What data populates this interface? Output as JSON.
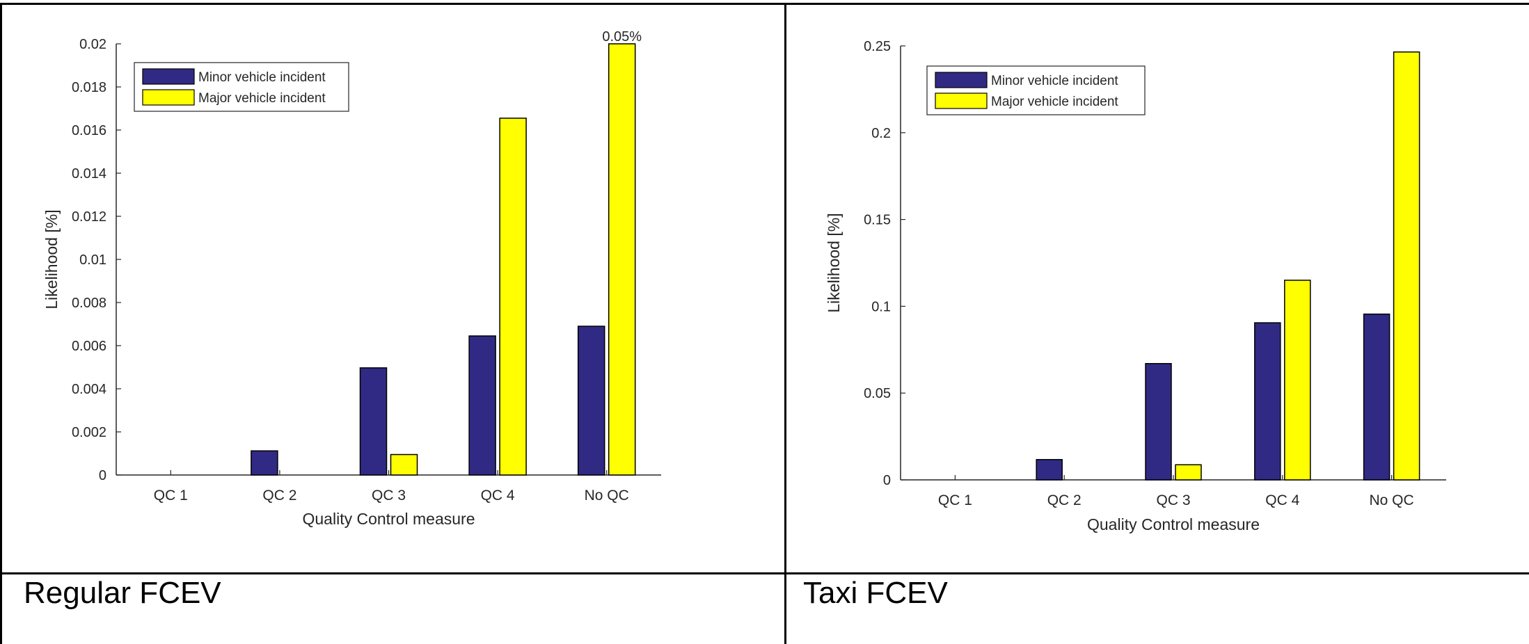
{
  "panels": [
    {
      "caption": "Regular FCEV",
      "chart": {
        "type": "bar",
        "categories": [
          "QC 1",
          "QC 2",
          "QC 3",
          "QC 4",
          "No QC"
        ],
        "series": [
          {
            "name": "Minor vehicle incident",
            "values": [
              0,
              0.00112,
              0.00497,
              0.00645,
              0.0069
            ],
            "color": "#312a84"
          },
          {
            "name": "Major vehicle incident",
            "values": [
              0,
              0,
              0.00095,
              0.01655,
              0.02
            ],
            "color": "#ffff00"
          }
        ],
        "annotation": {
          "text": "0.05%",
          "category": "No QC",
          "series": 1
        },
        "xlabel": "Quality Control measure",
        "ylabel": "Likelihood [%]",
        "ylim": [
          0,
          0.02
        ],
        "yticks": [
          0,
          0.002,
          0.004,
          0.006,
          0.008,
          0.01,
          0.012,
          0.014,
          0.016,
          0.018,
          0.02
        ],
        "ytick_labels": [
          "0",
          "0.002",
          "0.004",
          "0.006",
          "0.008",
          "0.01",
          "0.012",
          "0.014",
          "0.016",
          "0.018",
          "0.02"
        ],
        "legend_position": "top-left",
        "grid": false
      }
    },
    {
      "caption": "Taxi FCEV",
      "chart": {
        "type": "bar",
        "categories": [
          "QC 1",
          "QC 2",
          "QC 3",
          "QC 4",
          "No QC"
        ],
        "series": [
          {
            "name": "Minor vehicle incident",
            "values": [
              0,
              0.0117,
              0.067,
              0.0905,
              0.0955
            ],
            "color": "#312a84"
          },
          {
            "name": "Major vehicle incident",
            "values": [
              0,
              0,
              0.0087,
              0.115,
              0.2465
            ],
            "color": "#ffff00"
          }
        ],
        "xlabel": "Quality Control measure",
        "ylabel": "Likelihood [%]",
        "ylim": [
          0,
          0.25
        ],
        "yticks": [
          0,
          0.05,
          0.1,
          0.15,
          0.2,
          0.25
        ],
        "ytick_labels": [
          "0",
          "0.05",
          "0.1",
          "0.15",
          "0.2",
          "0.25"
        ],
        "legend_position": "top-left",
        "grid": false
      }
    }
  ]
}
